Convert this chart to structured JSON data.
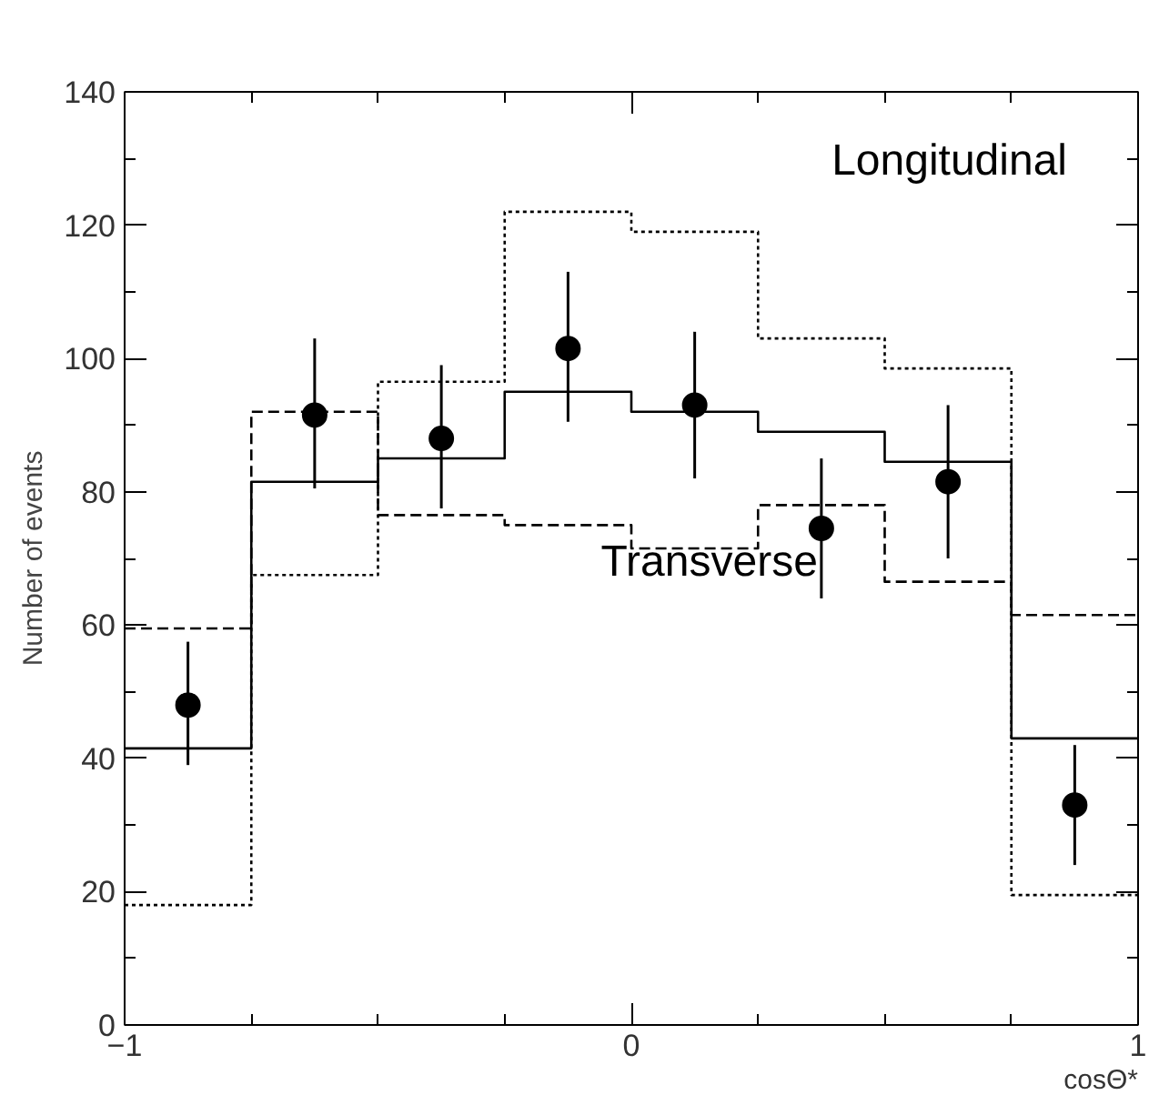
{
  "chart_data": {
    "type": "step",
    "xlabel": "cosΘ*",
    "ylabel": "Number of events",
    "series": [
      {
        "color": "#000000",
        "line_style": "solid",
        "x": [
          -1,
          -0.75,
          -0.5,
          -0.25,
          0,
          0.25,
          0.5,
          0.75,
          1
        ],
        "values": [
          41.5,
          81.5,
          85,
          95,
          92,
          89,
          84.5,
          43,
          43
        ]
      },
      {
        "color": "#000000",
        "line_style": "dashed",
        "x": [
          -1,
          -0.75,
          -0.5,
          -0.25,
          0,
          0.25,
          0.5,
          0.75,
          1
        ],
        "values": [
          59.5,
          92,
          76.5,
          75,
          71.5,
          78,
          66.5,
          61.5,
          61.5
        ]
      },
      {
        "color": "#000000",
        "line_style": "dotted",
        "x": [
          -1,
          -0.75,
          -0.5,
          -0.25,
          0,
          0.25,
          0.5,
          0.75,
          1
        ],
        "values": [
          18,
          67.5,
          96.5,
          122,
          119,
          103,
          98.5,
          19.5,
          19.5
        ]
      },
      {
        "type": "scatter",
        "color": "#000000",
        "marker": "circle",
        "x": [
          -0.875,
          -0.625,
          -0.375,
          -0.125,
          0.125,
          0.375,
          0.625,
          0.875
        ],
        "values": [
          48,
          91.5,
          88,
          101.5,
          93,
          74.5,
          81.5,
          33
        ],
        "errors": [
          [
            39,
            57.5
          ],
          [
            80.5,
            103
          ],
          [
            77.5,
            99
          ],
          [
            90.5,
            113
          ],
          [
            82,
            104
          ],
          [
            64,
            85
          ],
          [
            70,
            93
          ],
          [
            24,
            42
          ]
        ]
      }
    ],
    "annotations": [
      "Longitudinal",
      "Transverse"
    ],
    "xlim": [
      -1,
      1
    ],
    "xticks": [
      -1,
      {
        "value": -0.75,
        "label": null
      },
      {
        "value": -0.5,
        "label": null
      },
      {
        "value": -0.25,
        "label": null
      },
      0,
      {
        "value": 0.25,
        "label": null
      },
      {
        "value": 0.5,
        "label": null
      },
      {
        "value": 0.75,
        "label": null
      },
      1
    ],
    "ylim": [
      0,
      140
    ],
    "yticks": [
      0,
      {
        "value": 10,
        "label": null
      },
      20,
      {
        "value": 30,
        "label": null
      },
      40,
      {
        "value": 50,
        "label": null
      },
      60,
      {
        "value": 70,
        "label": null
      },
      80,
      {
        "value": 90,
        "label": null
      },
      100,
      {
        "value": 110,
        "label": null
      },
      120,
      {
        "value": 130,
        "label": null
      },
      140
    ],
    "grid": false
  }
}
